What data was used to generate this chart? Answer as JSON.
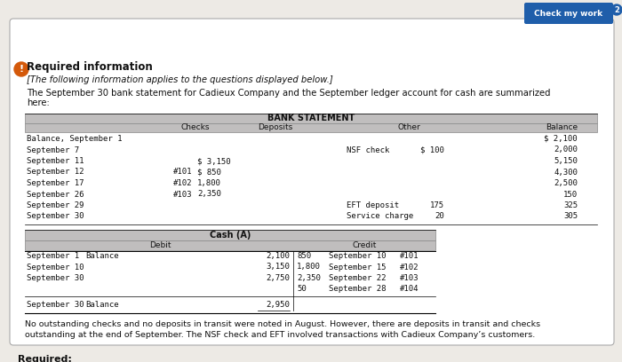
{
  "bg_color": "#edeae5",
  "card_color": "#ffffff",
  "header_bg": "#c0bebe",
  "title": "Required information",
  "subtitle": "[The following information applies to the questions displayed below.]",
  "intro1": "The September 30 bank statement for Cadieux Company and the September ledger account for cash are summarized",
  "intro2": "here:",
  "bank_header": "BANK STATEMENT",
  "col_checks": "Checks",
  "col_deposits": "Deposits",
  "col_other": "Other",
  "col_balance": "Balance",
  "bank_rows": [
    [
      "Balance, September 1",
      "",
      "",
      "",
      "$ 2,100"
    ],
    [
      "September 7",
      "",
      "",
      "NSF check",
      "$ 100",
      "2,000"
    ],
    [
      "September 11",
      "",
      "$ 3,150",
      "",
      "",
      "5,150"
    ],
    [
      "September 12",
      "#101",
      "$ 850",
      "",
      "",
      "4,300"
    ],
    [
      "September 17",
      "#102",
      "1,800",
      "",
      "",
      "2,500"
    ],
    [
      "September 26",
      "#103",
      "2,350",
      "",
      "",
      "150"
    ],
    [
      "September 29",
      "",
      "",
      "EFT deposit",
      "175",
      "325"
    ],
    [
      "September 30",
      "",
      "",
      "Service charge",
      "20",
      "305"
    ]
  ],
  "cash_header": "Cash (A)",
  "cash_debit_label": "Debit",
  "cash_credit_label": "Credit",
  "cash_left_rows": [
    [
      "September 1",
      "Balance",
      "2,100"
    ],
    [
      "September 10",
      "",
      "3,150"
    ],
    [
      "September 30",
      "",
      "2,750"
    ]
  ],
  "cash_right_rows": [
    [
      "850",
      "September 10",
      "#101"
    ],
    [
      "1,800",
      "September 15",
      "#102"
    ],
    [
      "2,350",
      "September 22",
      "#103"
    ],
    [
      "50",
      "September 28",
      "#104"
    ]
  ],
  "cash_balance": [
    "September 30",
    "Balance",
    "2,950"
  ],
  "footer1": "No outstanding checks and no deposits in transit were noted in August. However, there are deposits in transit and checks",
  "footer2": "outstanding at the end of September. The NSF check and EFT involved transactions with Cadieux Company’s customers.",
  "required_label": "Required:",
  "btn_text": "Check my work",
  "btn_number": "2"
}
